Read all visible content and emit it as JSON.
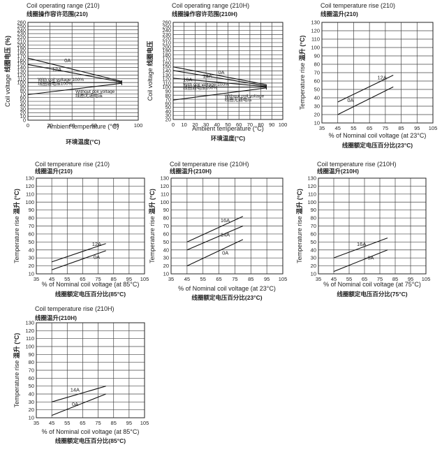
{
  "chart_data": [
    {
      "id": "op210",
      "type": "line",
      "title": "Coil operating range (210)",
      "subtitle": "线圈操作容许范围(210)",
      "xlabel": "Ambient temperature (°C)",
      "xlabel_cn": "环境温度(°C)",
      "ylabel": "Coil voltage",
      "ylabel_cn": "线圈电压 (%)",
      "xlim": [
        0,
        100
      ],
      "ylim": [
        0,
        260
      ],
      "xticks": [
        0,
        20,
        40,
        60,
        80,
        100
      ],
      "yticks": [
        0,
        10,
        20,
        30,
        40,
        50,
        60,
        70,
        80,
        90,
        100,
        110,
        120,
        130,
        140,
        150,
        160,
        170,
        180,
        190,
        200,
        210,
        220,
        230,
        240,
        250,
        260
      ],
      "grid": true,
      "series": [
        {
          "name": "0A",
          "x": [
            0,
            85
          ],
          "y": [
            165,
            103
          ]
        },
        {
          "name": "12A",
          "x": [
            0,
            85
          ],
          "y": [
            148,
            101
          ]
        },
        {
          "name": "With coil voltage 100%",
          "x": [
            0,
            85
          ],
          "y": [
            100,
            100
          ]
        },
        {
          "name": "Without coil voltage",
          "x": [
            0,
            85
          ],
          "y": [
            68,
            98
          ]
        }
      ],
      "boundary": {
        "x": [
          85,
          85
        ],
        "y": [
          93,
          106
        ]
      },
      "annotations": [
        {
          "text": "0A",
          "x": 33,
          "y": 154
        },
        {
          "text": "12A",
          "x": 22,
          "y": 130
        },
        {
          "text": "With coil voltage 100%",
          "x": 9,
          "y": 104
        },
        {
          "text": "线圈通电压100%",
          "x": 9,
          "y": 94
        },
        {
          "text": "Without coil voltage",
          "x": 43,
          "y": 72
        },
        {
          "text": "线圈无通电压",
          "x": 43,
          "y": 62
        }
      ]
    },
    {
      "id": "op210H",
      "type": "line",
      "title": "Coil operating range (210H)",
      "subtitle": "线圈操作容许范围(210H)",
      "xlabel": "Ambient temperature (°C)",
      "xlabel_cn": "环境温度(°C)",
      "ylabel": "Coil voltage",
      "ylabel_cn": "线圈电压",
      "xlim": [
        0,
        100
      ],
      "ylim": [
        20,
        260
      ],
      "xticks": [
        0,
        10,
        20,
        30,
        40,
        50,
        60,
        70,
        80,
        90,
        100
      ],
      "yticks": [
        20,
        30,
        40,
        50,
        60,
        70,
        80,
        90,
        100,
        110,
        120,
        130,
        140,
        150,
        160,
        170,
        180,
        190,
        200,
        210,
        220,
        230,
        240,
        250,
        260
      ],
      "grid": true,
      "series": [
        {
          "name": "0A",
          "x": [
            0,
            85
          ],
          "y": [
            150,
            106
          ]
        },
        {
          "name": "14A",
          "x": [
            0,
            85
          ],
          "y": [
            141,
            103
          ]
        },
        {
          "name": "16A",
          "x": [
            0,
            85
          ],
          "y": [
            122,
            101
          ]
        },
        {
          "name": "With coil voltage 100%",
          "x": [
            0,
            85
          ],
          "y": [
            100,
            100
          ]
        },
        {
          "name": "Without coil voltage",
          "x": [
            0,
            85
          ],
          "y": [
            68,
            98
          ]
        }
      ],
      "boundary": {
        "x": [
          85,
          85
        ],
        "y": [
          94,
          106
        ]
      },
      "annotations": [
        {
          "text": "0A",
          "x": 41,
          "y": 132
        },
        {
          "text": "14A",
          "x": 27,
          "y": 123
        },
        {
          "text": "16A",
          "x": 9,
          "y": 114
        },
        {
          "text": "With coil voltage 100%",
          "x": 9,
          "y": 103
        },
        {
          "text": "线圈通电压100%",
          "x": 9,
          "y": 95
        },
        {
          "text": "Without coil voltage",
          "x": 47,
          "y": 74
        },
        {
          "text": "线圈无通电压",
          "x": 47,
          "y": 66
        }
      ]
    },
    {
      "id": "tr210_23",
      "type": "line",
      "title": "Coil temperature rise (210)",
      "subtitle": "线圈温升(210)",
      "xlabel": "% of Nominal coil voltage (at 23°C)",
      "xlabel_cn": "线圈额定电压百分比(23°C)",
      "ylabel": "Temperature rise",
      "ylabel_cn": "温升 (°C)",
      "xlim": [
        35,
        105
      ],
      "ylim": [
        10,
        130
      ],
      "xticks": [
        35,
        45,
        55,
        65,
        75,
        85,
        95,
        105
      ],
      "yticks": [
        10,
        20,
        30,
        40,
        50,
        60,
        70,
        80,
        90,
        100,
        110,
        120,
        130
      ],
      "grid": true,
      "series": [
        {
          "name": "12A",
          "x": [
            45,
            80
          ],
          "y": [
            35,
            67
          ]
        },
        {
          "name": "0A",
          "x": [
            45,
            80
          ],
          "y": [
            20,
            53
          ]
        }
      ],
      "annotations": [
        {
          "text": "12A",
          "x": 70,
          "y": 62
        },
        {
          "text": "0A",
          "x": 51,
          "y": 35
        }
      ]
    },
    {
      "id": "tr210_85",
      "type": "line",
      "title": "Coil temperature rise (210)",
      "subtitle": "线圈温升(210)",
      "xlabel": "% of Nominal coil voltage (at 85°C)",
      "xlabel_cn": "线圈额定电压百分比(85°C)",
      "ylabel": "Temperature rise",
      "ylabel_cn": "温升 (°C)",
      "xlim": [
        35,
        105
      ],
      "ylim": [
        10,
        130
      ],
      "xticks": [
        35,
        45,
        55,
        65,
        75,
        85,
        95,
        105
      ],
      "yticks": [
        10,
        20,
        30,
        40,
        50,
        60,
        70,
        80,
        90,
        100,
        110,
        120,
        130
      ],
      "grid": true,
      "series": [
        {
          "name": "12A",
          "x": [
            45,
            80
          ],
          "y": [
            25,
            48
          ]
        },
        {
          "name": "0A",
          "x": [
            45,
            80
          ],
          "y": [
            15,
            39
          ]
        }
      ],
      "annotations": [
        {
          "text": "12A",
          "x": 71,
          "y": 45
        },
        {
          "text": "0A",
          "x": 72,
          "y": 29
        }
      ]
    },
    {
      "id": "tr210H_23",
      "type": "line",
      "title": "Coil temperature rise (210H)",
      "subtitle": "线圈温升(210H)",
      "xlabel": "% of Nominal coil voltage (at 23°C)",
      "xlabel_cn": "线圈额定电压百分比(23°C)",
      "ylabel": "Temperature rise",
      "ylabel_cn": "温升 (°C)",
      "xlim": [
        35,
        105
      ],
      "ylim": [
        10,
        130
      ],
      "xticks": [
        35,
        45,
        55,
        65,
        75,
        85,
        95,
        105
      ],
      "yticks": [
        10,
        20,
        30,
        40,
        50,
        60,
        70,
        80,
        90,
        100,
        110,
        120,
        130
      ],
      "grid": true,
      "series": [
        {
          "name": "16A",
          "x": [
            45,
            80
          ],
          "y": [
            50,
            82
          ]
        },
        {
          "name": "14A",
          "x": [
            45,
            80
          ],
          "y": [
            40,
            70
          ]
        },
        {
          "name": "0A",
          "x": [
            45,
            80
          ],
          "y": [
            20,
            53
          ]
        }
      ],
      "annotations": [
        {
          "text": "16A",
          "x": 66,
          "y": 75
        },
        {
          "text": "14A",
          "x": 66,
          "y": 57
        },
        {
          "text": "0A",
          "x": 67,
          "y": 34
        }
      ]
    },
    {
      "id": "tr210H_75",
      "type": "line",
      "title": "Coil temperature rise (210H)",
      "subtitle": "线圈温升(210H)",
      "xlabel": "% of Nominal coil voltage (at 75°C)",
      "xlabel_cn": "线圈额定电压百分比(75°C)",
      "ylabel": "Temperature rise",
      "ylabel_cn": "温升 (°C)",
      "xlim": [
        35,
        105
      ],
      "ylim": [
        10,
        130
      ],
      "xticks": [
        35,
        45,
        55,
        65,
        75,
        85,
        95,
        105
      ],
      "yticks": [
        10,
        20,
        30,
        40,
        50,
        60,
        70,
        80,
        90,
        100,
        110,
        120,
        130
      ],
      "grid": true,
      "series": [
        {
          "name": "16A",
          "x": [
            45,
            80
          ],
          "y": [
            30,
            55
          ]
        },
        {
          "name": "0A",
          "x": [
            45,
            80
          ],
          "y": [
            13,
            40
          ]
        }
      ],
      "annotations": [
        {
          "text": "16A",
          "x": 60,
          "y": 45
        },
        {
          "text": "0A",
          "x": 67,
          "y": 28
        }
      ]
    },
    {
      "id": "tr210H_85",
      "type": "line",
      "title": "Coil temperature rise (210H)",
      "subtitle": "线圈温升(210H)",
      "xlabel": "% of Nominal coil voltage (at 85°C)",
      "xlabel_cn": "线圈额定电压百分比(85°C)",
      "ylabel": "Temperature rise",
      "ylabel_cn": "温升 (°C)",
      "xlim": [
        35,
        105
      ],
      "ylim": [
        10,
        130
      ],
      "xticks": [
        35,
        45,
        55,
        65,
        75,
        85,
        95,
        105
      ],
      "yticks": [
        10,
        20,
        30,
        40,
        50,
        60,
        70,
        80,
        90,
        100,
        110,
        120,
        130
      ],
      "grid": true,
      "series": [
        {
          "name": "14A",
          "x": [
            45,
            80
          ],
          "y": [
            30,
            50
          ]
        },
        {
          "name": "0A",
          "x": [
            45,
            80
          ],
          "y": [
            13,
            40
          ]
        }
      ],
      "annotations": [
        {
          "text": "14A",
          "x": 57,
          "y": 43
        },
        {
          "text": "0A",
          "x": 58,
          "y": 25
        }
      ]
    }
  ]
}
